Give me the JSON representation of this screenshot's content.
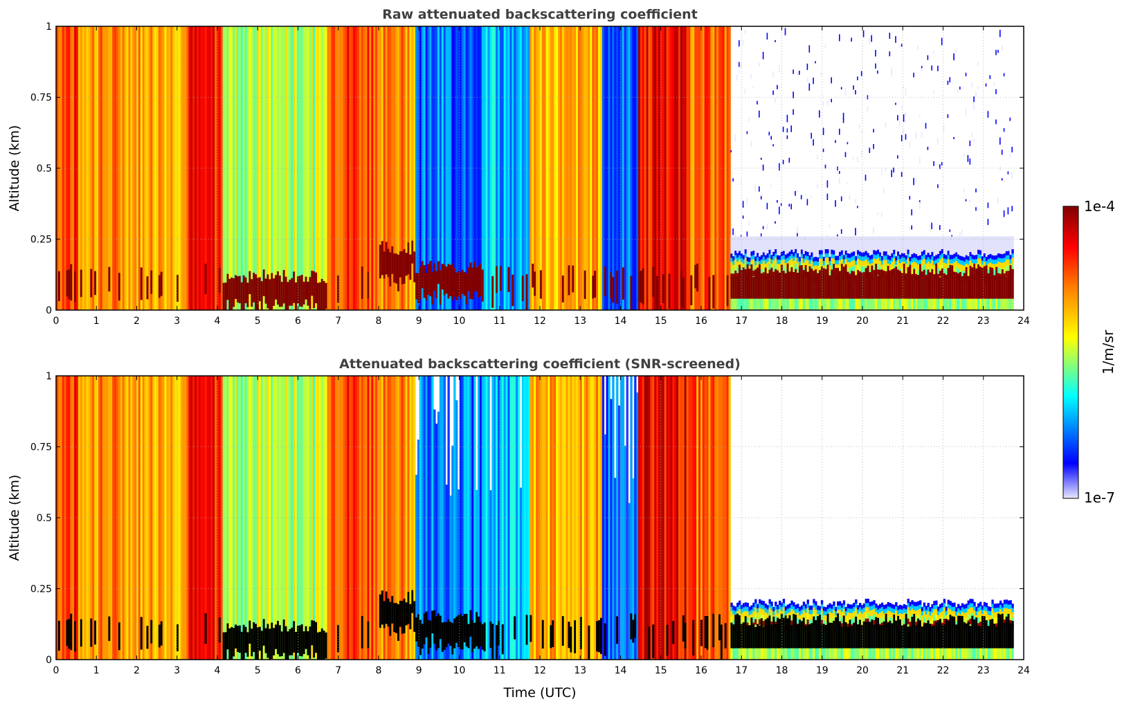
{
  "chart_data": [
    {
      "type": "heatmap",
      "title": "Raw attenuated backscattering coefficient",
      "xlabel": "",
      "ylabel": "Altitude (km)",
      "xlim": [
        0,
        24
      ],
      "ylim": [
        0,
        1
      ],
      "xticks": [
        "0",
        "1",
        "2",
        "3",
        "4",
        "5",
        "6",
        "7",
        "8",
        "9",
        "10",
        "11",
        "12",
        "13",
        "14",
        "15",
        "16",
        "17",
        "18",
        "19",
        "20",
        "21",
        "22",
        "23",
        "24"
      ],
      "yticks": [
        "0",
        "0.25",
        "0.5",
        "0.75",
        "1"
      ],
      "grid": true,
      "data_end_hour": 23.7,
      "segments": [
        {
          "t0": 0.0,
          "t1": 0.5,
          "level": 0.8,
          "cloud_base": 0.0
        },
        {
          "t0": 0.5,
          "t1": 1.0,
          "level": 0.7,
          "cloud_base": 0.0
        },
        {
          "t0": 1.0,
          "t1": 2.0,
          "level": 0.7,
          "cloud_base": 0.0
        },
        {
          "t0": 2.0,
          "t1": 3.2,
          "level": 0.68,
          "cloud_base": 0.0
        },
        {
          "t0": 3.2,
          "t1": 4.1,
          "level": 0.84,
          "cloud_base": 0.0
        },
        {
          "t0": 4.1,
          "t1": 6.7,
          "level": 0.5,
          "cloud_base": 0.12
        },
        {
          "t0": 6.7,
          "t1": 8.0,
          "level": 0.8,
          "cloud_base": 0.0
        },
        {
          "t0": 8.0,
          "t1": 8.9,
          "level": 0.7,
          "cloud_base": 0.22
        },
        {
          "t0": 8.9,
          "t1": 10.6,
          "level": 0.22,
          "cloud_base": 0.15
        },
        {
          "t0": 10.6,
          "t1": 11.7,
          "level": 0.28,
          "cloud_base": 0.0
        },
        {
          "t0": 11.7,
          "t1": 13.5,
          "level": 0.65,
          "cloud_base": 0.0
        },
        {
          "t0": 13.5,
          "t1": 14.4,
          "level": 0.2,
          "cloud_base": 0.0
        },
        {
          "t0": 14.4,
          "t1": 15.7,
          "level": 0.86,
          "cloud_base": 0.0
        },
        {
          "t0": 15.7,
          "t1": 16.7,
          "level": 0.74,
          "cloud_base": 0.0
        },
        {
          "t0": 16.7,
          "t1": 23.7,
          "level": 0.05,
          "cloud_base": 0.0,
          "boundary_layer_top": 0.2
        }
      ]
    },
    {
      "type": "heatmap",
      "title": "Attenuated backscattering coefficient (SNR-screened)",
      "xlabel": "Time (UTC)",
      "ylabel": "Altitude (km)",
      "xlim": [
        0,
        24
      ],
      "ylim": [
        0,
        1
      ],
      "xticks": [
        "0",
        "1",
        "2",
        "3",
        "4",
        "5",
        "6",
        "7",
        "8",
        "9",
        "10",
        "11",
        "12",
        "13",
        "14",
        "15",
        "16",
        "17",
        "18",
        "19",
        "20",
        "21",
        "22",
        "23",
        "24"
      ],
      "yticks": [
        "0",
        "0.25",
        "0.5",
        "0.75",
        "1"
      ],
      "grid": true,
      "data_end_hour": 23.7
    }
  ],
  "colorbar": {
    "label": "1/m/sr",
    "max_label": "1e-4",
    "min_label": "1e-7",
    "colormap": "jet",
    "colors": [
      "#e8e8ff",
      "#0000ff",
      "#00ffff",
      "#ffff00",
      "#ff8000",
      "#ff0000",
      "#800000"
    ]
  }
}
